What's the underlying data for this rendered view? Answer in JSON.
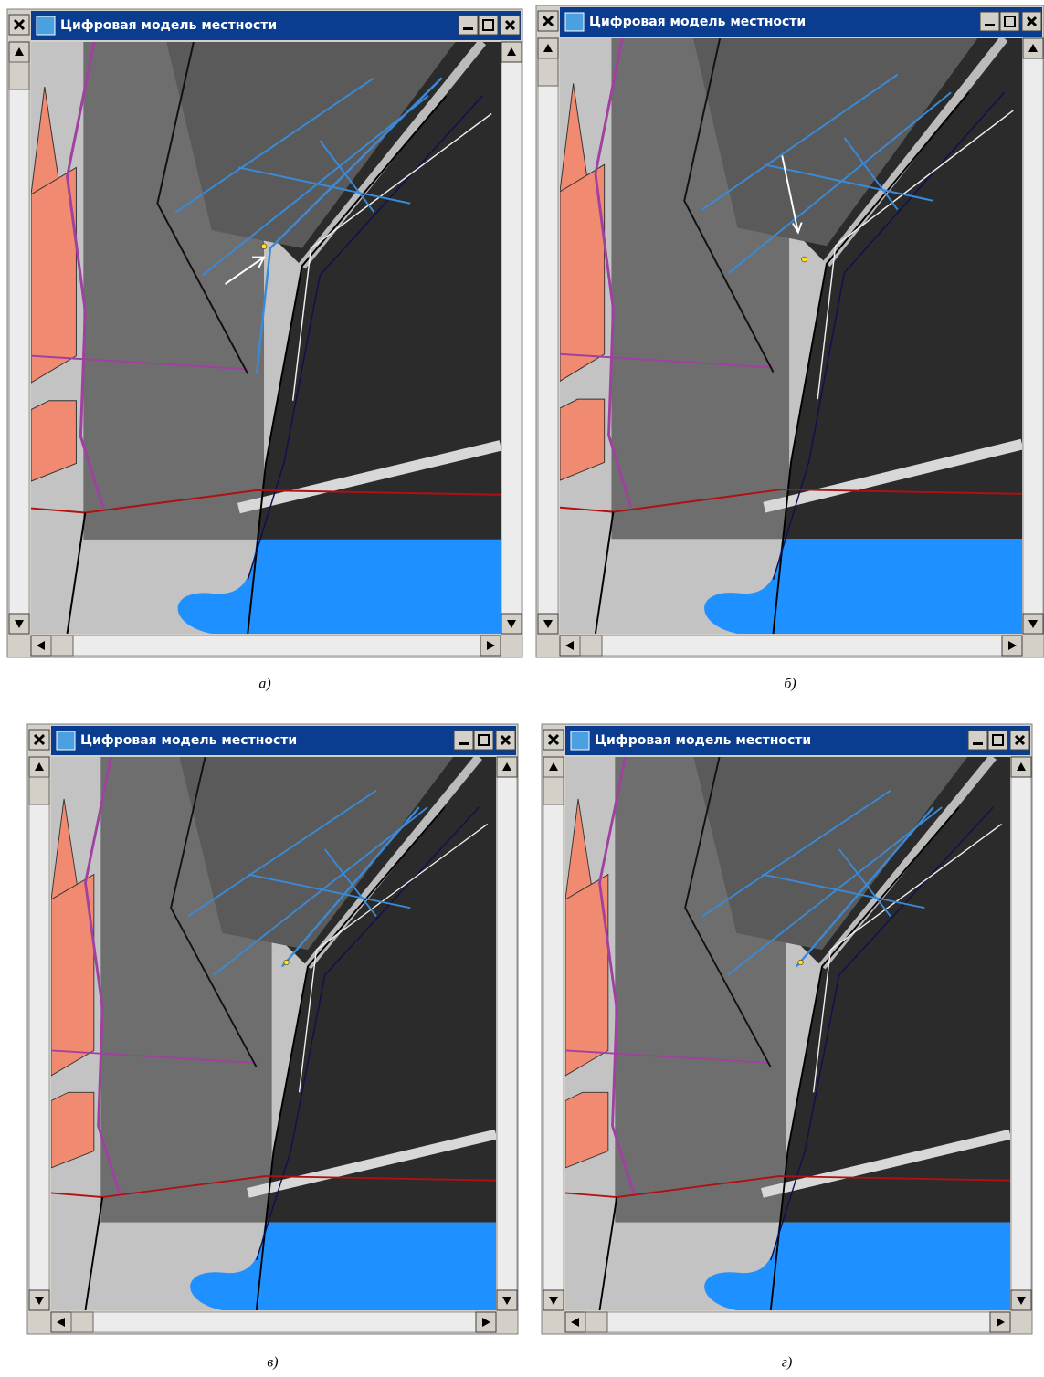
{
  "panels": [
    {
      "window_title": "Цифровая модель местности",
      "caption": "а)"
    },
    {
      "window_title": "Цифровая модель местности",
      "caption": "б)"
    },
    {
      "window_title": "Цифровая модель местности",
      "caption": "в)"
    },
    {
      "window_title": "Цифровая модель местности",
      "caption": "г)"
    }
  ]
}
